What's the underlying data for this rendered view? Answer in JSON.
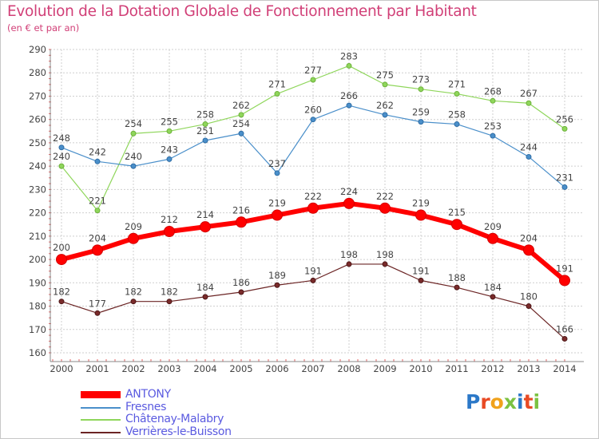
{
  "title": "Evolution de la Dotation Globale de Fonctionnement par Habitant",
  "subtitle": "(en € et par an)",
  "logo": {
    "text": "Proxiti",
    "colors": [
      "#2b78c8",
      "#e84a24",
      "#f0a21c",
      "#7cc242",
      "#2b78c8",
      "#e84a24",
      "#7cc242"
    ]
  },
  "chart_data": {
    "type": "line",
    "title": "Evolution de la Dotation Globale de Fonctionnement par Habitant",
    "subtitle": "(en € et par an)",
    "xlabel": "",
    "ylabel": "",
    "x": [
      "2000",
      "2001",
      "2002",
      "2003",
      "2004",
      "2005",
      "2006",
      "2007",
      "2008",
      "2009",
      "2010",
      "2011",
      "2012",
      "2013",
      "2014"
    ],
    "ylim": [
      160,
      290
    ],
    "yticks": [
      160,
      170,
      180,
      190,
      200,
      210,
      220,
      230,
      240,
      250,
      260,
      270,
      280,
      290
    ],
    "grid": true,
    "legend_position": "bottom-left",
    "series": [
      {
        "name": "ANTONY",
        "color": "#ff0000",
        "values": [
          200,
          204,
          209,
          212,
          214,
          216,
          219,
          222,
          224,
          222,
          219,
          215,
          209,
          204,
          191
        ]
      },
      {
        "name": "Fresnes",
        "color": "#4a8fca",
        "values": [
          248,
          242,
          240,
          243,
          251,
          254,
          237,
          260,
          266,
          262,
          259,
          258,
          253,
          244,
          231
        ]
      },
      {
        "name": "Châtenay-Malabry",
        "color": "#8fd65b",
        "values": [
          240,
          221,
          254,
          255,
          258,
          262,
          271,
          277,
          283,
          275,
          273,
          271,
          268,
          267,
          256
        ]
      },
      {
        "name": "Verrières-le-Buisson",
        "color": "#6b2424",
        "values": [
          182,
          177,
          182,
          182,
          184,
          186,
          189,
          191,
          198,
          198,
          191,
          188,
          184,
          180,
          166
        ]
      }
    ]
  }
}
